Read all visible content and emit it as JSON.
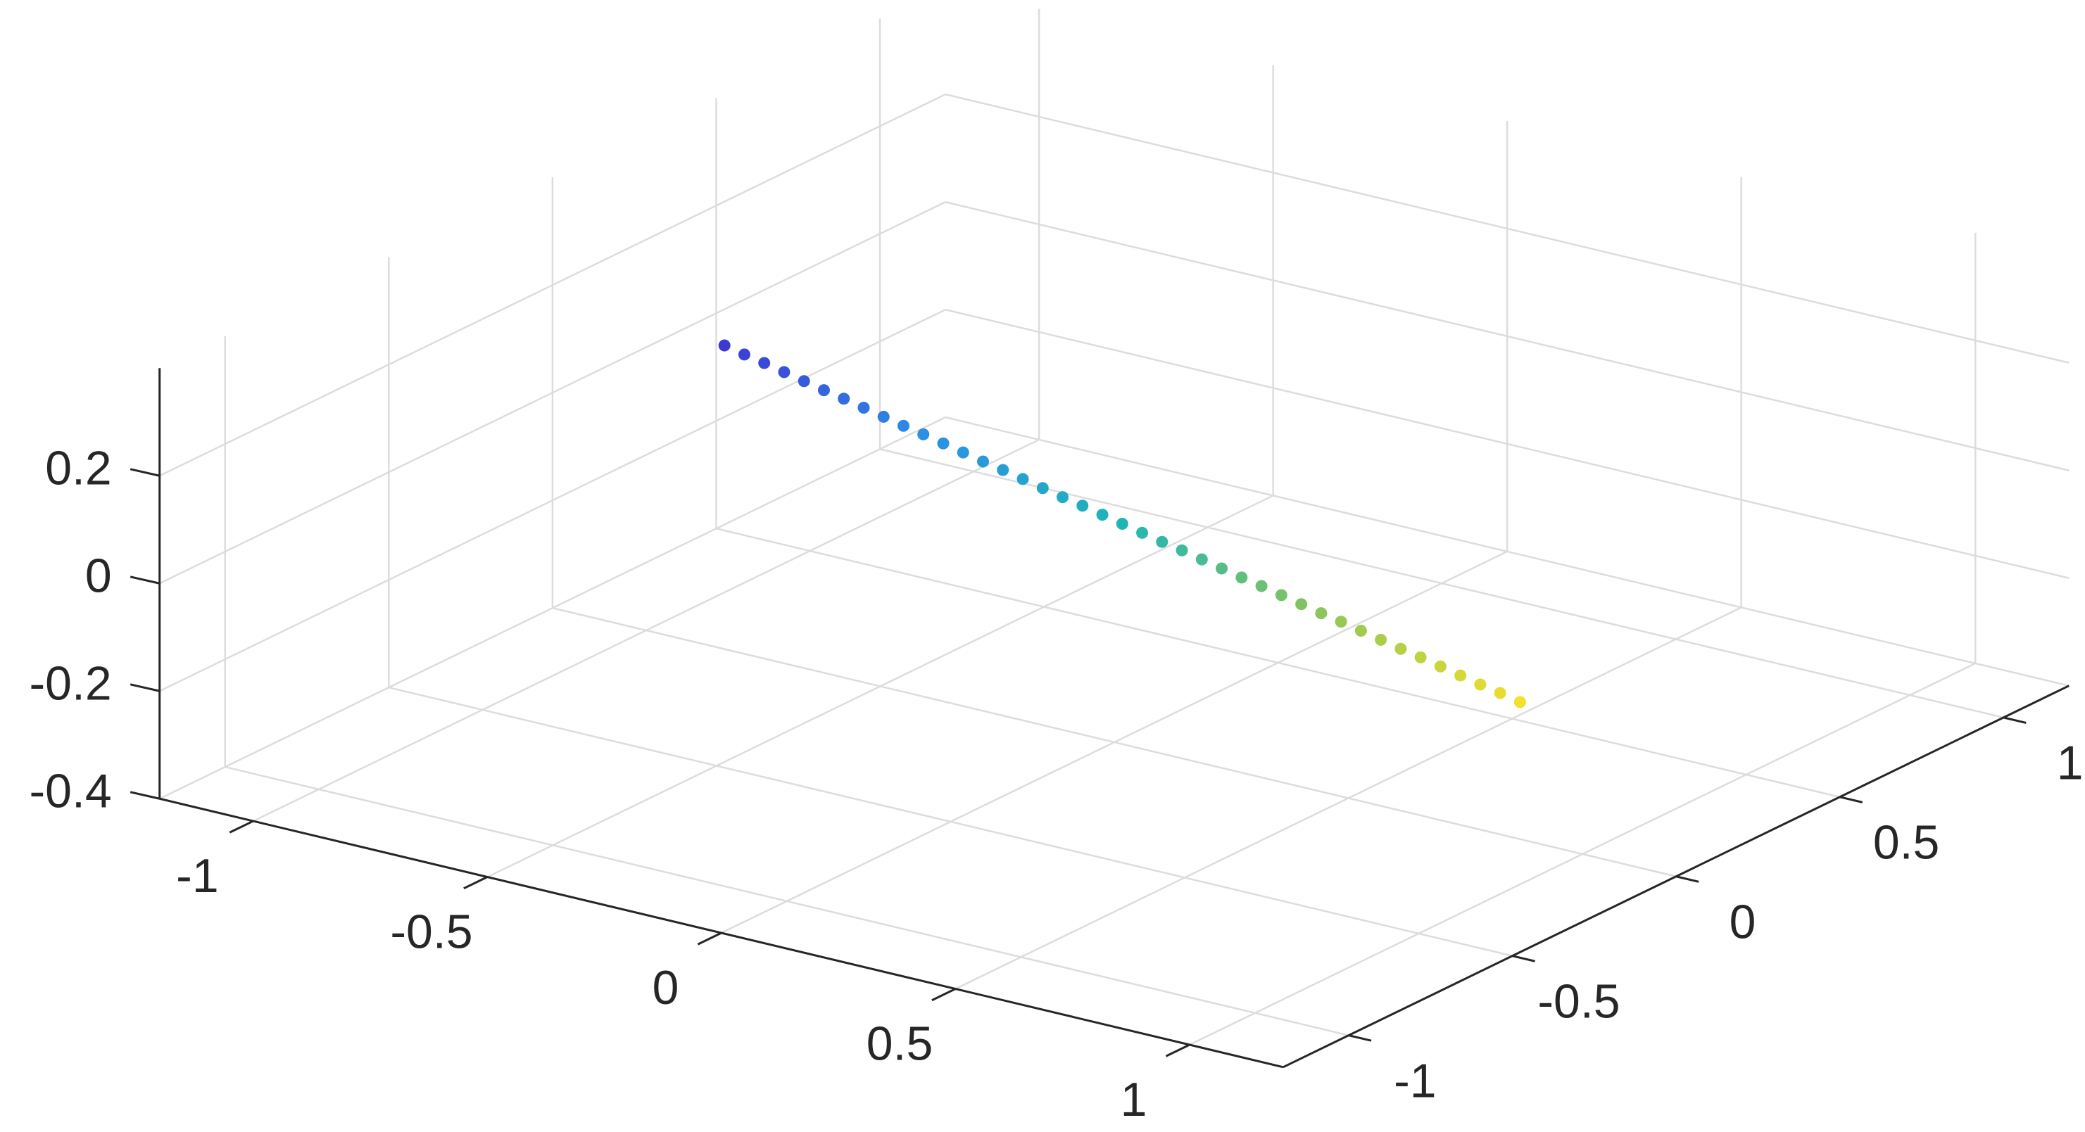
{
  "chart_data": {
    "type": "scatter3",
    "x": [
      -0.49,
      -0.465,
      -0.44,
      -0.415,
      -0.39,
      -0.365,
      -0.34,
      -0.315,
      -0.29,
      -0.265,
      -0.24,
      -0.215,
      -0.19,
      -0.165,
      -0.14,
      -0.115,
      -0.09,
      -0.065,
      -0.04,
      -0.015,
      0.01,
      0.035,
      0.06,
      0.085,
      0.11,
      0.135,
      0.16,
      0.185,
      0.21,
      0.235,
      0.26,
      0.285,
      0.31,
      0.335,
      0.36,
      0.385,
      0.41,
      0.435,
      0.46,
      0.485,
      0.51
    ],
    "y": [
      -0.49,
      -0.465,
      -0.44,
      -0.415,
      -0.39,
      -0.365,
      -0.34,
      -0.315,
      -0.29,
      -0.265,
      -0.24,
      -0.215,
      -0.19,
      -0.165,
      -0.14,
      -0.115,
      -0.09,
      -0.065,
      -0.04,
      -0.015,
      0.01,
      0.035,
      0.06,
      0.085,
      0.11,
      0.135,
      0.16,
      0.185,
      0.21,
      0.235,
      0.26,
      0.285,
      0.31,
      0.335,
      0.36,
      0.385,
      0.41,
      0.435,
      0.46,
      0.485,
      0.51
    ],
    "z": [
      0.38,
      0.361,
      0.343,
      0.324,
      0.305,
      0.286,
      0.268,
      0.249,
      0.23,
      0.211,
      0.193,
      0.174,
      0.155,
      0.136,
      0.118,
      0.099,
      0.08,
      0.061,
      0.043,
      0.024,
      0.005,
      -0.014,
      -0.033,
      -0.051,
      -0.07,
      -0.089,
      -0.108,
      -0.126,
      -0.145,
      -0.164,
      -0.183,
      -0.201,
      -0.22,
      -0.239,
      -0.258,
      -0.276,
      -0.295,
      -0.314,
      -0.333,
      -0.351,
      -0.37
    ],
    "colormap": [
      "#f2e02a",
      "#8cc55a",
      "#1fb5b5",
      "#2b8fe6",
      "#3d3ad4"
    ],
    "xlim": [
      -1.2,
      1.2
    ],
    "xticks": [
      -1,
      -0.5,
      0,
      0.5,
      1
    ],
    "ylim": [
      -1.2,
      1.2
    ],
    "yticks": [
      -1,
      -0.5,
      0,
      0.5,
      1
    ],
    "zlim": [
      -0.4,
      0.4
    ],
    "zticks": [
      -0.4,
      -0.2,
      0,
      0.2
    ],
    "grid": true
  }
}
